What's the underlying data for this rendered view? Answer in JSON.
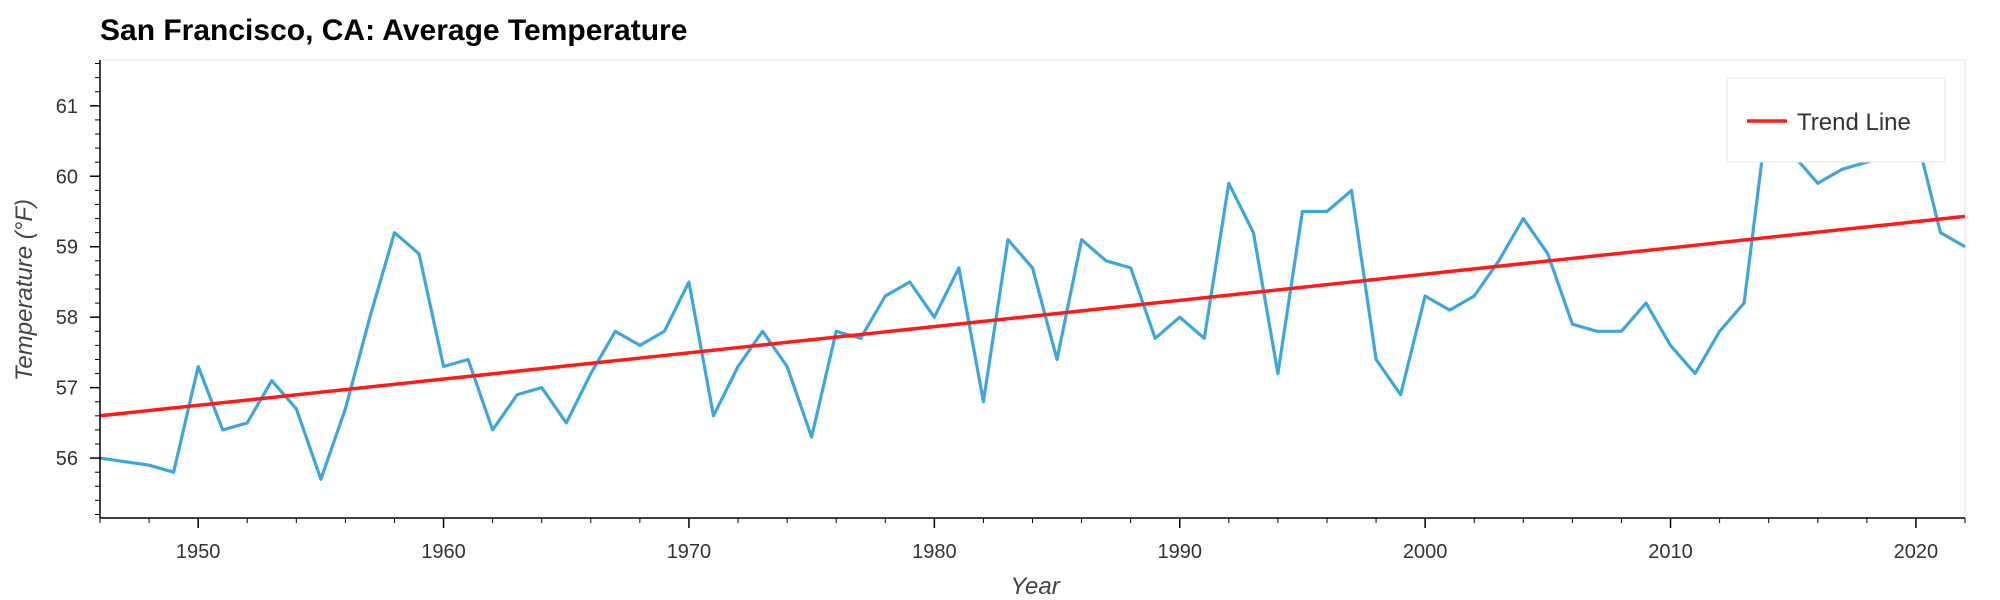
{
  "chart_data": {
    "type": "line",
    "title": "San Francisco, CA: Average Temperature",
    "xlabel": "Year",
    "ylabel": "Temperature (°F)",
    "xlim": [
      1946,
      2022
    ],
    "ylim": [
      55.15,
      61.65
    ],
    "x_ticks": [
      1950,
      1960,
      1970,
      1980,
      1990,
      2000,
      2010,
      2020
    ],
    "y_ticks": [
      56,
      57,
      58,
      59,
      60,
      61
    ],
    "grid": false,
    "legend_position": "top-right",
    "series": [
      {
        "type": "line",
        "color": "#3ea6de",
        "x": [
          1946,
          1948,
          1949,
          1950,
          1951,
          1952,
          1953,
          1954,
          1955,
          1956,
          1957,
          1958,
          1959,
          1960,
          1961,
          1962,
          1963,
          1964,
          1965,
          1966,
          1967,
          1968,
          1969,
          1970,
          1971,
          1972,
          1973,
          1974,
          1975,
          1976,
          1977,
          1978,
          1979,
          1980,
          1981,
          1982,
          1983,
          1984,
          1985,
          1986,
          1987,
          1988,
          1989,
          1990,
          1991,
          1992,
          1993,
          1994,
          1995,
          1996,
          1997,
          1998,
          1999,
          2000,
          2001,
          2002,
          2003,
          2004,
          2005,
          2006,
          2007,
          2008,
          2009,
          2010,
          2011,
          2012,
          2013,
          2014,
          2015,
          2016,
          2017,
          2018,
          2019,
          2020,
          2021,
          2022
        ],
        "values": [
          56.0,
          55.9,
          55.8,
          57.3,
          56.4,
          56.5,
          57.1,
          56.7,
          55.7,
          56.7,
          58.0,
          59.2,
          58.9,
          57.3,
          57.4,
          56.4,
          56.9,
          57.0,
          56.5,
          57.2,
          57.8,
          57.6,
          57.8,
          58.5,
          56.6,
          57.3,
          57.8,
          57.3,
          56.3,
          57.8,
          57.7,
          58.3,
          58.5,
          58.0,
          58.7,
          56.8,
          59.1,
          58.7,
          57.4,
          59.1,
          58.8,
          58.7,
          57.7,
          58.0,
          57.7,
          59.9,
          59.2,
          57.2,
          59.5,
          59.5,
          59.8,
          57.4,
          56.9,
          58.3,
          58.1,
          58.3,
          58.8,
          59.4,
          58.9,
          57.9,
          57.8,
          57.8,
          58.2,
          57.6,
          57.2,
          57.8,
          58.2,
          61.0,
          60.3,
          59.9,
          60.1,
          60.2,
          60.3,
          60.6,
          59.2,
          59.0
        ]
      },
      {
        "name": "Trend Line",
        "type": "line",
        "color": "#ff1a1a",
        "x": [
          1946,
          2022
        ],
        "values": [
          56.6,
          59.43
        ]
      }
    ]
  }
}
